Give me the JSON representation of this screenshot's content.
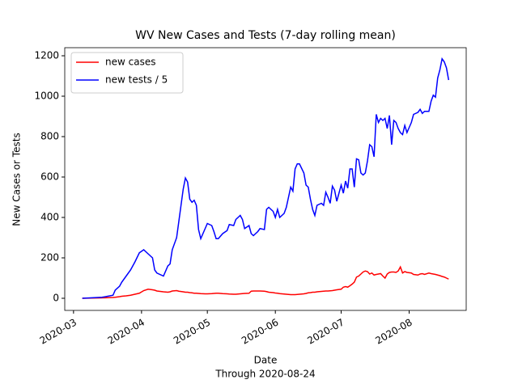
{
  "chart_data": {
    "type": "line",
    "title": "WV New Cases and Tests (7-day rolling mean)",
    "xlabel": [
      "Date",
      "Through 2020-08-24"
    ],
    "ylabel": "New Cases or Tests",
    "x": [
      "2020-03-05",
      "2020-03-14",
      "2020-03-19",
      "2020-03-20",
      "2020-03-22",
      "2020-03-23",
      "2020-03-25",
      "2020-03-27",
      "2020-03-29",
      "2020-03-31",
      "2020-04-02",
      "2020-04-04",
      "2020-04-06",
      "2020-04-07",
      "2020-04-08",
      "2020-04-11",
      "2020-04-13",
      "2020-04-14",
      "2020-04-15",
      "2020-04-17",
      "2020-04-18",
      "2020-04-20",
      "2020-04-21",
      "2020-04-22",
      "2020-04-23",
      "2020-04-24",
      "2020-04-25",
      "2020-04-26",
      "2020-04-27",
      "2020-04-28",
      "2020-04-30",
      "2020-05-01",
      "2020-05-03",
      "2020-05-04",
      "2020-05-05",
      "2020-05-06",
      "2020-05-08",
      "2020-05-10",
      "2020-05-11",
      "2020-05-13",
      "2020-05-14",
      "2020-05-16",
      "2020-05-17",
      "2020-05-18",
      "2020-05-20",
      "2020-05-21",
      "2020-05-22",
      "2020-05-24",
      "2020-05-25",
      "2020-05-27",
      "2020-05-28",
      "2020-05-29",
      "2020-05-31",
      "2020-06-01",
      "2020-06-02",
      "2020-06-03",
      "2020-06-05",
      "2020-06-06",
      "2020-06-07",
      "2020-06-08",
      "2020-06-09",
      "2020-06-10",
      "2020-06-11",
      "2020-06-12",
      "2020-06-14",
      "2020-06-15",
      "2020-06-16",
      "2020-06-17",
      "2020-06-18",
      "2020-06-19",
      "2020-06-20",
      "2020-06-22",
      "2020-06-23",
      "2020-06-24",
      "2020-06-25",
      "2020-06-26",
      "2020-06-27",
      "2020-06-28",
      "2020-06-29",
      "2020-07-01",
      "2020-07-02",
      "2020-07-03",
      "2020-07-04",
      "2020-07-05",
      "2020-07-06",
      "2020-07-07",
      "2020-07-08",
      "2020-07-09",
      "2020-07-10",
      "2020-07-11",
      "2020-07-12",
      "2020-07-13",
      "2020-07-14",
      "2020-07-15",
      "2020-07-16",
      "2020-07-17",
      "2020-07-18",
      "2020-07-19",
      "2020-07-20",
      "2020-07-21",
      "2020-07-22",
      "2020-07-23",
      "2020-07-24",
      "2020-07-25",
      "2020-07-26",
      "2020-07-27",
      "2020-07-28",
      "2020-07-29",
      "2020-07-30",
      "2020-07-31",
      "2020-08-02",
      "2020-08-03",
      "2020-08-05",
      "2020-08-06",
      "2020-08-07",
      "2020-08-08",
      "2020-08-10",
      "2020-08-11",
      "2020-08-12",
      "2020-08-13",
      "2020-08-14",
      "2020-08-15",
      "2020-08-16",
      "2020-08-17",
      "2020-08-18",
      "2020-08-19"
    ],
    "series": [
      {
        "name": "new cases",
        "color": "#ff0000",
        "values": [
          0,
          2,
          4,
          5,
          8,
          10,
          12,
          15,
          20,
          25,
          38,
          45,
          42,
          40,
          36,
          32,
          30,
          32,
          36,
          38,
          35,
          32,
          30,
          30,
          28,
          27,
          25,
          25,
          24,
          23,
          22,
          22,
          23,
          24,
          25,
          25,
          23,
          22,
          21,
          20,
          20,
          22,
          23,
          24,
          25,
          35,
          36,
          36,
          36,
          35,
          33,
          30,
          28,
          26,
          25,
          23,
          21,
          20,
          19,
          18,
          18,
          18,
          19,
          20,
          22,
          24,
          27,
          28,
          30,
          30,
          32,
          34,
          35,
          36,
          36,
          37,
          38,
          40,
          42,
          45,
          55,
          58,
          55,
          62,
          70,
          80,
          105,
          110,
          120,
          130,
          135,
          132,
          120,
          125,
          115,
          118,
          120,
          122,
          110,
          100,
          120,
          128,
          130,
          130,
          128,
          135,
          155,
          125,
          132,
          128,
          125,
          118,
          115,
          120,
          122,
          118,
          125,
          122,
          120,
          118,
          115,
          112,
          108,
          105,
          100,
          95
        ]
      },
      {
        "name": "new tests / 5",
        "color": "#0000ff",
        "values": [
          0,
          5,
          15,
          40,
          60,
          80,
          110,
          140,
          180,
          225,
          240,
          220,
          200,
          140,
          125,
          110,
          160,
          170,
          240,
          300,
          380,
          540,
          595,
          575,
          490,
          475,
          485,
          460,
          340,
          295,
          345,
          370,
          360,
          330,
          295,
          295,
          320,
          335,
          365,
          360,
          390,
          410,
          390,
          345,
          360,
          320,
          310,
          330,
          345,
          340,
          440,
          450,
          430,
          400,
          440,
          400,
          420,
          450,
          500,
          550,
          530,
          640,
          665,
          665,
          620,
          560,
          550,
          490,
          440,
          410,
          460,
          470,
          460,
          525,
          500,
          470,
          555,
          535,
          480,
          560,
          520,
          580,
          545,
          640,
          640,
          550,
          690,
          685,
          620,
          610,
          620,
          680,
          760,
          750,
          700,
          910,
          870,
          890,
          880,
          890,
          840,
          905,
          760,
          880,
          870,
          840,
          820,
          810,
          855,
          820,
          870,
          910,
          920,
          935,
          915,
          925,
          925,
          975,
          1005,
          995,
          1090,
          1130,
          1185,
          1170,
          1140,
          1080
        ]
      }
    ],
    "xlim": [
      "2020-02-26",
      "2020-08-27"
    ],
    "xticks": [
      {
        "value": "2020-03-01",
        "label": "2020-03"
      },
      {
        "value": "2020-04-01",
        "label": "2020-04"
      },
      {
        "value": "2020-05-01",
        "label": "2020-05"
      },
      {
        "value": "2020-06-01",
        "label": "2020-06"
      },
      {
        "value": "2020-07-01",
        "label": "2020-07"
      },
      {
        "value": "2020-08-01",
        "label": "2020-08"
      }
    ],
    "ylim": [
      -60,
      1240
    ],
    "yticks": [
      0,
      200,
      400,
      600,
      800,
      1000,
      1200
    ],
    "legend": "upper left"
  }
}
